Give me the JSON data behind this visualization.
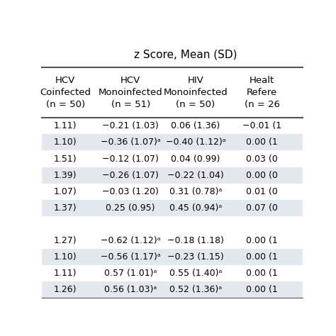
{
  "title": "z Score, Mean (SD)",
  "col_headers": [
    "HCV\nCoinfected\n(n = 50)",
    "HCV\nMonoinfected\n(n = 51)",
    "HIV\nMonoinfected\n(n = 50)",
    "Healt\nRefere\n(n = 26"
  ],
  "rows": [
    {
      "values": [
        "1.11)",
        "−0.21 (1.03)",
        "0.06 (1.36)",
        "−0.01 (1"
      ],
      "shaded": false,
      "gap": false
    },
    {
      "values": [
        "1.10)",
        "−0.36 (1.07)ᵃ",
        "−0.40 (1.12)ᵃ",
        "0.00 (1"
      ],
      "shaded": true,
      "gap": false
    },
    {
      "values": [
        "1.51)",
        "−0.12 (1.07)",
        "0.04 (0.99)",
        "0.03 (0"
      ],
      "shaded": false,
      "gap": false
    },
    {
      "values": [
        "1.39)",
        "−0.26 (1.07)",
        "−0.22 (1.04)",
        "0.00 (0"
      ],
      "shaded": true,
      "gap": false
    },
    {
      "values": [
        "1.07)",
        "−0.03 (1.20)",
        "0.31 (0.78)ᵃ",
        "0.01 (0"
      ],
      "shaded": false,
      "gap": false
    },
    {
      "values": [
        "1.37)",
        "0.25 (0.95)",
        "0.45 (0.94)ᵃ",
        "0.07 (0"
      ],
      "shaded": true,
      "gap": false
    },
    {
      "values": [
        "",
        "",
        "",
        ""
      ],
      "shaded": false,
      "gap": true
    },
    {
      "values": [
        "1.27)",
        "−0.62 (1.12)ᵃ",
        "−0.18 (1.18)",
        "0.00 (1"
      ],
      "shaded": false,
      "gap": false
    },
    {
      "values": [
        "1.10)",
        "−0.56 (1.17)ᵃ",
        "−0.23 (1.15)",
        "0.00 (1"
      ],
      "shaded": true,
      "gap": false
    },
    {
      "values": [
        "1.11)",
        "0.57 (1.01)ᵃ",
        "0.55 (1.40)ᵃ",
        "0.00 (1"
      ],
      "shaded": false,
      "gap": false
    },
    {
      "values": [
        "1.26)",
        "0.56 (1.03)ᵃ",
        "0.52 (1.36)ᵃ",
        "0.00 (1"
      ],
      "shaded": true,
      "gap": false
    }
  ],
  "bg_color": "#ffffff",
  "shaded_color": "#e2e8ee",
  "gap_color": "#ffffff",
  "header_line_color": "#555555",
  "text_color": "#000000",
  "font_size": 9.0,
  "header_font_size": 9.5,
  "title_font_size": 11
}
